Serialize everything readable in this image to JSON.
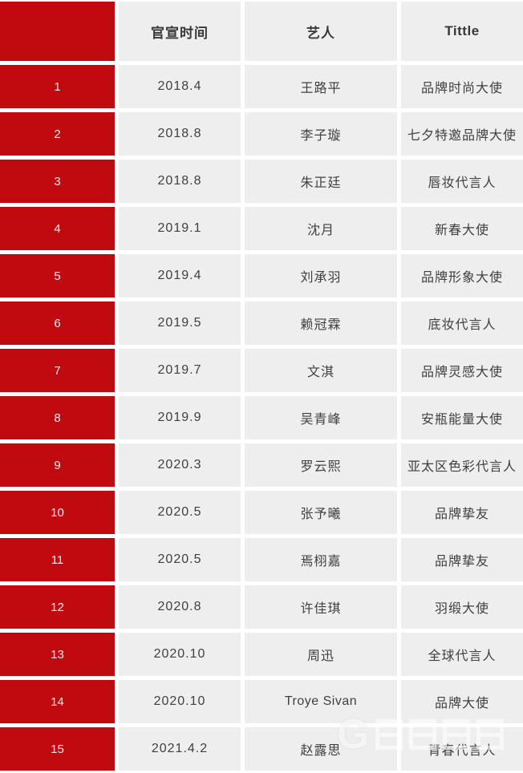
{
  "colors": {
    "accent_red": "#c00a0f",
    "cell_gray": "#efeeee",
    "text_dark": "#3f3f3f",
    "number_text": "#f7eeee"
  },
  "watermark": {
    "letter": "G"
  },
  "table": {
    "columns": [
      "",
      "官宣时间",
      "艺人",
      "Tittle"
    ],
    "rows": [
      {
        "no": "1",
        "date": "2018.4",
        "artist": "王路平",
        "title": "品牌时尚大使"
      },
      {
        "no": "2",
        "date": "2018.8",
        "artist": "李子璇",
        "title": "七夕特邀品牌大使"
      },
      {
        "no": "3",
        "date": "2018.8",
        "artist": "朱正廷",
        "title": "唇妆代言人"
      },
      {
        "no": "4",
        "date": "2019.1",
        "artist": "沈月",
        "title": "新春大使"
      },
      {
        "no": "5",
        "date": "2019.4",
        "artist": "刘承羽",
        "title": "品牌形象大使"
      },
      {
        "no": "6",
        "date": "2019.5",
        "artist": "赖冠霖",
        "title": "底妆代言人"
      },
      {
        "no": "7",
        "date": "2019.7",
        "artist": "文淇",
        "title": "品牌灵感大使"
      },
      {
        "no": "8",
        "date": "2019.9",
        "artist": "吴青峰",
        "title": "安瓶能量大使"
      },
      {
        "no": "9",
        "date": "2020.3",
        "artist": "罗云熙",
        "title": "亚太区色彩代言人"
      },
      {
        "no": "10",
        "date": "2020.5",
        "artist": "张予曦",
        "title": "品牌挚友"
      },
      {
        "no": "11",
        "date": "2020.5",
        "artist": "焉栩嘉",
        "title": "品牌挚友"
      },
      {
        "no": "12",
        "date": "2020.8",
        "artist": "许佳琪",
        "title": "羽缎大使"
      },
      {
        "no": "13",
        "date": "2020.10",
        "artist": "周迅",
        "title": "全球代言人"
      },
      {
        "no": "14",
        "date": "2020.10",
        "artist": "Troye Sivan",
        "title": "品牌大使"
      },
      {
        "no": "15",
        "date": "2021.4.2",
        "artist": "赵露思",
        "title": "青春代言人"
      }
    ]
  },
  "chart_data": {
    "type": "table",
    "title": "",
    "columns": [
      "#",
      "官宣时间",
      "艺人",
      "Tittle"
    ],
    "rows": [
      [
        "1",
        "2018.4",
        "王路平",
        "品牌时尚大使"
      ],
      [
        "2",
        "2018.8",
        "李子璇",
        "七夕特邀品牌大使"
      ],
      [
        "3",
        "2018.8",
        "朱正廷",
        "唇妆代言人"
      ],
      [
        "4",
        "2019.1",
        "沈月",
        "新春大使"
      ],
      [
        "5",
        "2019.4",
        "刘承羽",
        "品牌形象大使"
      ],
      [
        "6",
        "2019.5",
        "赖冠霖",
        "底妆代言人"
      ],
      [
        "7",
        "2019.7",
        "文淇",
        "品牌灵感大使"
      ],
      [
        "8",
        "2019.9",
        "吴青峰",
        "安瓶能量大使"
      ],
      [
        "9",
        "2020.3",
        "罗云熙",
        "亚太区色彩代言人"
      ],
      [
        "10",
        "2020.5",
        "张予曦",
        "品牌挚友"
      ],
      [
        "11",
        "2020.5",
        "焉栩嘉",
        "品牌挚友"
      ],
      [
        "12",
        "2020.8",
        "许佳琪",
        "羽缎大使"
      ],
      [
        "13",
        "2020.10",
        "周迅",
        "全球代言人"
      ],
      [
        "14",
        "2020.10",
        "Troye Sivan",
        "品牌大使"
      ],
      [
        "15",
        "2021.4.2",
        "赵露思",
        "青春代言人"
      ]
    ]
  }
}
